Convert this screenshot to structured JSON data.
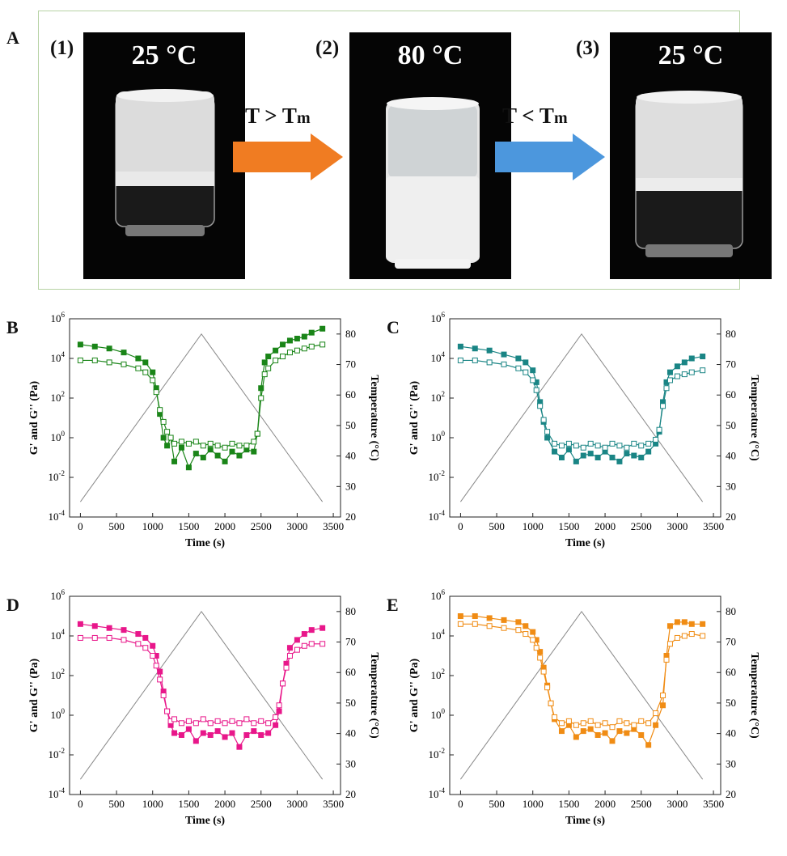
{
  "panelA": {
    "letter": "A",
    "photos": [
      {
        "step": "(1)",
        "temp": "25 °C"
      },
      {
        "step": "(2)",
        "temp": "80 °C"
      },
      {
        "step": "(3)",
        "temp": "25 °C"
      }
    ],
    "arrows": [
      {
        "label_main": "T > T",
        "label_sub": "m",
        "color": "#f07c22"
      },
      {
        "label_main": "T < T",
        "label_sub": "m",
        "color": "#4c97dd"
      }
    ]
  },
  "chart_data": [
    {
      "panel": "B",
      "type": "scatter",
      "color": "#1a8518",
      "xlabel": "Time (s)",
      "ylabel": "G' and G'' (Pa)",
      "y2label": "Temperature (°C)",
      "xlim": [
        -150,
        3600
      ],
      "ylim_log10": [
        -4,
        6
      ],
      "y2lim": [
        20,
        85
      ],
      "xticks": [
        "0",
        "500",
        "1000",
        "1500",
        "2000",
        "2500",
        "3000",
        "3500"
      ],
      "xtick_values": [
        0,
        500,
        1000,
        1500,
        2000,
        2500,
        3000,
        3500
      ],
      "yticks_exp": [
        "-4",
        "-2",
        "0",
        "2",
        "4",
        "6"
      ],
      "ytick_values": [
        -4,
        -2,
        0,
        2,
        4,
        6
      ],
      "y2ticks": [
        "20",
        "30",
        "40",
        "50",
        "60",
        "70",
        "80"
      ],
      "y2tick_values": [
        20,
        30,
        40,
        50,
        60,
        70,
        80
      ],
      "temperature_profile": {
        "x": [
          0,
          1675,
          3350
        ],
        "y": [
          25,
          80,
          25
        ]
      },
      "series": [
        {
          "marker": "filled-square",
          "x": [
            0,
            200,
            400,
            600,
            800,
            900,
            1000,
            1050,
            1100,
            1150,
            1200,
            1250,
            1300,
            1400,
            1500,
            1600,
            1700,
            1800,
            1900,
            2000,
            2100,
            2200,
            2300,
            2400,
            2450,
            2500,
            2550,
            2600,
            2700,
            2800,
            2900,
            3000,
            3100,
            3200,
            3350
          ],
          "log10_y": [
            4.7,
            4.6,
            4.5,
            4.3,
            4.0,
            3.8,
            3.3,
            2.5,
            1.2,
            0.0,
            -0.4,
            0.0,
            -1.2,
            -0.5,
            -1.5,
            -0.8,
            -1.0,
            -0.6,
            -0.9,
            -1.2,
            -0.7,
            -0.9,
            -0.6,
            -0.7,
            0.2,
            2.5,
            3.8,
            4.1,
            4.4,
            4.7,
            4.9,
            5.0,
            5.1,
            5.3,
            5.5
          ]
        },
        {
          "marker": "open-square",
          "x": [
            0,
            200,
            400,
            600,
            800,
            900,
            1000,
            1050,
            1100,
            1150,
            1200,
            1250,
            1300,
            1400,
            1500,
            1600,
            1700,
            1800,
            1900,
            2000,
            2100,
            2200,
            2300,
            2400,
            2450,
            2500,
            2550,
            2600,
            2700,
            2800,
            2900,
            3000,
            3100,
            3200,
            3350
          ],
          "log10_y": [
            3.9,
            3.9,
            3.8,
            3.7,
            3.5,
            3.3,
            2.9,
            2.3,
            1.4,
            0.8,
            0.3,
            0.0,
            -0.3,
            -0.2,
            -0.3,
            -0.2,
            -0.4,
            -0.3,
            -0.4,
            -0.5,
            -0.3,
            -0.4,
            -0.4,
            -0.2,
            0.2,
            2.0,
            3.2,
            3.5,
            3.9,
            4.1,
            4.3,
            4.4,
            4.5,
            4.6,
            4.7
          ]
        }
      ]
    },
    {
      "panel": "C",
      "type": "scatter",
      "color": "#1a8585",
      "xlabel": "Time (s)",
      "ylabel": "G' and G'' (Pa)",
      "y2label": "Temperature (°C)",
      "xlim": [
        -150,
        3600
      ],
      "ylim_log10": [
        -4,
        6
      ],
      "y2lim": [
        20,
        85
      ],
      "xticks": [
        "0",
        "500",
        "1000",
        "1500",
        "2000",
        "2500",
        "3000",
        "3500"
      ],
      "xtick_values": [
        0,
        500,
        1000,
        1500,
        2000,
        2500,
        3000,
        3500
      ],
      "yticks_exp": [
        "-4",
        "-2",
        "0",
        "2",
        "4",
        "6"
      ],
      "ytick_values": [
        -4,
        -2,
        0,
        2,
        4,
        6
      ],
      "y2ticks": [
        "20",
        "30",
        "40",
        "50",
        "60",
        "70",
        "80"
      ],
      "y2tick_values": [
        20,
        30,
        40,
        50,
        60,
        70,
        80
      ],
      "temperature_profile": {
        "x": [
          0,
          1675,
          3350
        ],
        "y": [
          25,
          80,
          25
        ]
      },
      "series": [
        {
          "marker": "filled-square",
          "x": [
            0,
            200,
            400,
            600,
            800,
            900,
            1000,
            1050,
            1100,
            1150,
            1200,
            1300,
            1400,
            1500,
            1600,
            1700,
            1800,
            1900,
            2000,
            2100,
            2200,
            2300,
            2400,
            2500,
            2600,
            2700,
            2750,
            2800,
            2850,
            2900,
            3000,
            3100,
            3200,
            3350
          ],
          "log10_y": [
            4.6,
            4.5,
            4.4,
            4.2,
            4.0,
            3.8,
            3.4,
            2.8,
            1.8,
            0.8,
            0.0,
            -0.7,
            -1.0,
            -0.6,
            -1.2,
            -0.9,
            -0.8,
            -1.0,
            -0.7,
            -1.0,
            -1.2,
            -0.8,
            -0.9,
            -1.0,
            -0.7,
            -0.3,
            0.3,
            1.8,
            2.8,
            3.3,
            3.6,
            3.8,
            4.0,
            4.1
          ]
        },
        {
          "marker": "open-square",
          "x": [
            0,
            200,
            400,
            600,
            800,
            900,
            1000,
            1050,
            1100,
            1150,
            1200,
            1300,
            1400,
            1500,
            1600,
            1700,
            1800,
            1900,
            2000,
            2100,
            2200,
            2300,
            2400,
            2500,
            2600,
            2700,
            2750,
            2800,
            2850,
            2900,
            3000,
            3100,
            3200,
            3350
          ],
          "log10_y": [
            3.9,
            3.9,
            3.8,
            3.7,
            3.5,
            3.3,
            2.9,
            2.4,
            1.6,
            0.9,
            0.3,
            -0.3,
            -0.4,
            -0.3,
            -0.4,
            -0.5,
            -0.3,
            -0.4,
            -0.5,
            -0.3,
            -0.4,
            -0.5,
            -0.3,
            -0.4,
            -0.3,
            -0.1,
            0.4,
            1.6,
            2.5,
            2.9,
            3.1,
            3.2,
            3.3,
            3.4
          ]
        }
      ]
    },
    {
      "panel": "D",
      "type": "scatter",
      "color": "#e8178a",
      "xlabel": "Time (s)",
      "ylabel": "G' and G'' (Pa)",
      "y2label": "Temperature (°C)",
      "xlim": [
        -150,
        3600
      ],
      "ylim_log10": [
        -4,
        6
      ],
      "y2lim": [
        20,
        85
      ],
      "xticks": [
        "0",
        "500",
        "1000",
        "1500",
        "2000",
        "2500",
        "3000",
        "3500"
      ],
      "xtick_values": [
        0,
        500,
        1000,
        1500,
        2000,
        2500,
        3000,
        3500
      ],
      "yticks_exp": [
        "-4",
        "-2",
        "0",
        "2",
        "4",
        "6"
      ],
      "ytick_values": [
        -4,
        -2,
        0,
        2,
        4,
        6
      ],
      "y2ticks": [
        "20",
        "30",
        "40",
        "50",
        "60",
        "70",
        "80"
      ],
      "y2tick_values": [
        20,
        30,
        40,
        50,
        60,
        70,
        80
      ],
      "temperature_profile": {
        "x": [
          0,
          1675,
          3350
        ],
        "y": [
          25,
          80,
          25
        ]
      },
      "series": [
        {
          "marker": "filled-square",
          "x": [
            0,
            200,
            400,
            600,
            800,
            900,
            1000,
            1050,
            1100,
            1150,
            1200,
            1250,
            1300,
            1400,
            1500,
            1600,
            1700,
            1800,
            1900,
            2000,
            2100,
            2200,
            2300,
            2400,
            2500,
            2600,
            2700,
            2750,
            2800,
            2850,
            2900,
            3000,
            3100,
            3200,
            3350
          ],
          "log10_y": [
            4.6,
            4.5,
            4.4,
            4.3,
            4.1,
            3.9,
            3.5,
            3.0,
            2.2,
            1.2,
            0.2,
            -0.5,
            -0.9,
            -1.0,
            -0.7,
            -1.3,
            -0.9,
            -1.0,
            -0.8,
            -1.1,
            -0.9,
            -1.6,
            -1.0,
            -0.8,
            -1.0,
            -0.9,
            -0.5,
            0.2,
            1.6,
            2.6,
            3.4,
            3.8,
            4.1,
            4.3,
            4.4
          ]
        },
        {
          "marker": "open-square",
          "x": [
            0,
            200,
            400,
            600,
            800,
            900,
            1000,
            1050,
            1100,
            1150,
            1200,
            1250,
            1300,
            1400,
            1500,
            1600,
            1700,
            1800,
            1900,
            2000,
            2100,
            2200,
            2300,
            2400,
            2500,
            2600,
            2700,
            2750,
            2800,
            2850,
            2900,
            3000,
            3100,
            3200,
            3350
          ],
          "log10_y": [
            3.9,
            3.9,
            3.9,
            3.8,
            3.6,
            3.4,
            3.0,
            2.5,
            1.8,
            1.0,
            0.2,
            -0.3,
            -0.2,
            -0.4,
            -0.3,
            -0.4,
            -0.2,
            -0.4,
            -0.3,
            -0.4,
            -0.3,
            -0.4,
            -0.2,
            -0.4,
            -0.3,
            -0.4,
            -0.1,
            0.5,
            1.6,
            2.4,
            3.0,
            3.3,
            3.5,
            3.6,
            3.6
          ]
        }
      ]
    },
    {
      "panel": "E",
      "type": "scatter",
      "color": "#f08c14",
      "xlabel": "Time (s)",
      "ylabel": "G' and G'' (Pa)",
      "y2label": "Temperature (°C)",
      "xlim": [
        -150,
        3600
      ],
      "ylim_log10": [
        -4,
        6
      ],
      "y2lim": [
        20,
        85
      ],
      "xticks": [
        "0",
        "500",
        "1000",
        "1500",
        "2000",
        "2500",
        "3000",
        "3500"
      ],
      "xtick_values": [
        0,
        500,
        1000,
        1500,
        2000,
        2500,
        3000,
        3500
      ],
      "yticks_exp": [
        "-4",
        "-2",
        "0",
        "2",
        "4",
        "6"
      ],
      "ytick_values": [
        -4,
        -2,
        0,
        2,
        4,
        6
      ],
      "y2ticks": [
        "20",
        "30",
        "40",
        "50",
        "60",
        "70",
        "80"
      ],
      "y2tick_values": [
        20,
        30,
        40,
        50,
        60,
        70,
        80
      ],
      "temperature_profile": {
        "x": [
          0,
          1675,
          3350
        ],
        "y": [
          25,
          80,
          25
        ]
      },
      "series": [
        {
          "marker": "filled-square",
          "x": [
            0,
            200,
            400,
            600,
            800,
            900,
            1000,
            1050,
            1100,
            1150,
            1200,
            1250,
            1300,
            1400,
            1500,
            1600,
            1700,
            1800,
            1900,
            2000,
            2100,
            2200,
            2300,
            2400,
            2500,
            2600,
            2700,
            2800,
            2850,
            2900,
            3000,
            3100,
            3200,
            3350
          ],
          "log10_y": [
            5.0,
            5.0,
            4.9,
            4.8,
            4.7,
            4.5,
            4.2,
            3.8,
            3.2,
            2.4,
            1.5,
            0.6,
            -0.2,
            -0.8,
            -0.5,
            -1.1,
            -0.8,
            -0.7,
            -1.0,
            -0.9,
            -1.3,
            -0.8,
            -0.9,
            -0.7,
            -1.0,
            -1.5,
            -0.5,
            0.5,
            3.0,
            4.5,
            4.7,
            4.7,
            4.6,
            4.6
          ]
        },
        {
          "marker": "open-square",
          "x": [
            0,
            200,
            400,
            600,
            800,
            900,
            1000,
            1050,
            1100,
            1150,
            1200,
            1250,
            1300,
            1400,
            1500,
            1600,
            1700,
            1800,
            1900,
            2000,
            2100,
            2200,
            2300,
            2400,
            2500,
            2600,
            2700,
            2800,
            2850,
            2900,
            3000,
            3100,
            3200,
            3350
          ],
          "log10_y": [
            4.6,
            4.6,
            4.5,
            4.4,
            4.3,
            4.1,
            3.8,
            3.4,
            2.9,
            2.2,
            1.4,
            0.6,
            -0.1,
            -0.4,
            -0.3,
            -0.5,
            -0.4,
            -0.3,
            -0.5,
            -0.4,
            -0.6,
            -0.3,
            -0.4,
            -0.5,
            -0.3,
            -0.4,
            0.1,
            1.0,
            2.8,
            3.6,
            3.9,
            4.0,
            4.1,
            4.0
          ]
        }
      ]
    }
  ]
}
